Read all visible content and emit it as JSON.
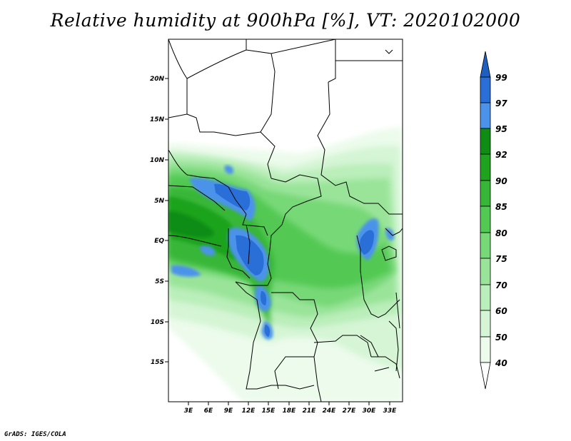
{
  "title": "Relative humidity at 900hPa [%], VT: 2020102000",
  "credit": "GrADS: IGES/COLA",
  "map": {
    "lat_ticks": [
      "20N",
      "15N",
      "10N",
      "5N",
      "EQ",
      "5S",
      "10S",
      "15S"
    ],
    "lon_ticks": [
      "3E",
      "6E",
      "9E",
      "12E",
      "15E",
      "18E",
      "21E",
      "24E",
      "27E",
      "30E",
      "33E"
    ]
  },
  "colorbar": {
    "labels": [
      "99",
      "97",
      "95",
      "92",
      "90",
      "85",
      "80",
      "75",
      "70",
      "60",
      "50",
      "40"
    ],
    "colors": {
      "top_arrow": "#1f5fbf",
      "97_99": "#2a6fd8",
      "95_97": "#4b93ea",
      "92_95": "#0f8c14",
      "90_92": "#1fa31f",
      "85_90": "#37b637",
      "80_85": "#52c952",
      "75_80": "#77d877",
      "70_75": "#9ae49a",
      "60_70": "#baeeba",
      "50_60": "#d5f5d5",
      "40_50": "#ecfbec",
      "bottom_arrow": "#ffffff"
    }
  }
}
